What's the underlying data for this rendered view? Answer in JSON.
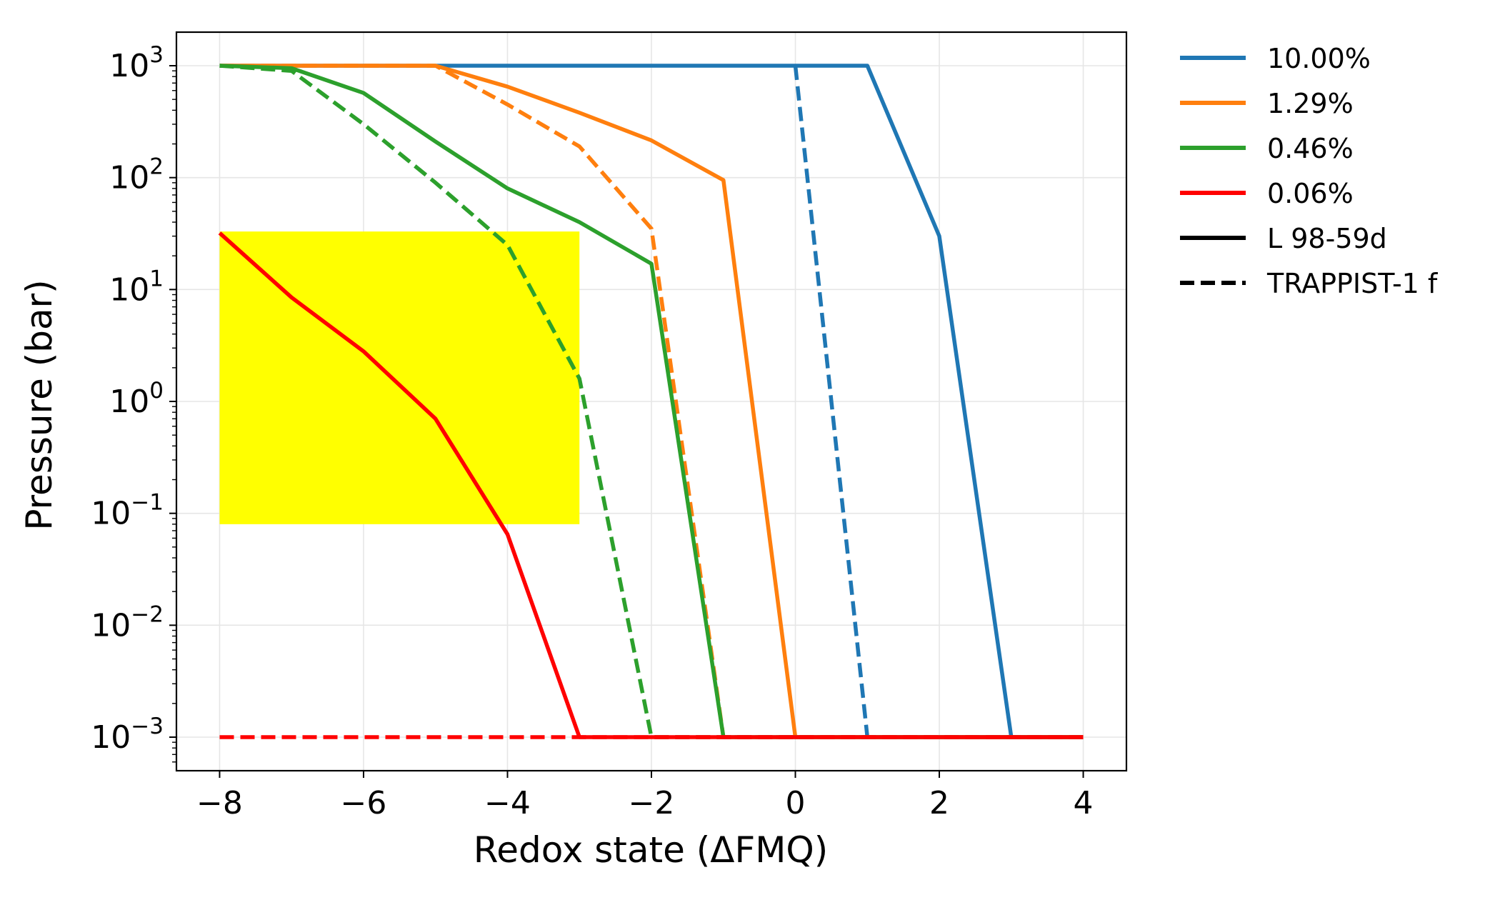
{
  "chart_data": {
    "type": "line",
    "title": "",
    "xlabel": "Redox state (ΔFMQ)",
    "ylabel": "Pressure (bar)",
    "xlim": [
      -8.6,
      4.6
    ],
    "ylim_log10": [
      -3.3,
      3.3
    ],
    "yscale": "log",
    "grid": true,
    "legend_position": "outside-right",
    "x_ticks": [
      -8,
      -6,
      -4,
      -2,
      0,
      2,
      4
    ],
    "x_tick_labels": [
      "−8",
      "−6",
      "−4",
      "−2",
      "0",
      "2",
      "4"
    ],
    "y_ticks_exp": [
      3,
      2,
      1,
      0,
      -1,
      -2,
      -3
    ],
    "y_tick_labels": [
      {
        "base": "10",
        "exp": "3"
      },
      {
        "base": "10",
        "exp": "2"
      },
      {
        "base": "10",
        "exp": "1"
      },
      {
        "base": "10",
        "exp": "0"
      },
      {
        "base": "10",
        "exp": "−1"
      },
      {
        "base": "10",
        "exp": "−2"
      },
      {
        "base": "10",
        "exp": "−3"
      }
    ],
    "shaded_region": {
      "x": [
        -8,
        -3
      ],
      "y": [
        0.08,
        33
      ],
      "color": "#ffff00"
    },
    "series": [
      {
        "name": "10.00%",
        "planet": "L 98-59d",
        "color": "#1f77b4",
        "dash": false,
        "x": [
          -8,
          -7,
          -6,
          -5,
          -4,
          -3,
          -2,
          -1,
          0,
          1,
          2,
          3,
          4
        ],
        "y": [
          1000,
          1000,
          1000,
          1000,
          1000,
          1000,
          1000,
          1000,
          1000,
          1000,
          30,
          0.001,
          0.001
        ]
      },
      {
        "name": "10.00%",
        "planet": "TRAPPIST-1 f",
        "color": "#1f77b4",
        "dash": true,
        "x": [
          0,
          1,
          2,
          3,
          4
        ],
        "y": [
          1000,
          0.001,
          0.001,
          0.001,
          0.001
        ]
      },
      {
        "name": "1.29%",
        "planet": "L 98-59d",
        "color": "#ff7f0e",
        "dash": false,
        "x": [
          -8,
          -7,
          -6,
          -5,
          -4,
          -3,
          -2,
          -1,
          0,
          1,
          2,
          3,
          4
        ],
        "y": [
          1000,
          1000,
          1000,
          1000,
          650,
          380,
          215,
          95,
          0.001,
          0.001,
          0.001,
          0.001,
          0.001
        ]
      },
      {
        "name": "1.29%",
        "planet": "TRAPPIST-1 f",
        "color": "#ff7f0e",
        "dash": true,
        "x": [
          -8,
          -7,
          -6,
          -5,
          -4,
          -3,
          -2,
          -1,
          0,
          1,
          2,
          3,
          4
        ],
        "y": [
          1000,
          1000,
          1000,
          1000,
          450,
          190,
          35,
          0.001,
          0.001,
          0.001,
          0.001,
          0.001,
          0.001
        ]
      },
      {
        "name": "0.46%",
        "planet": "L 98-59d",
        "color": "#2ca02c",
        "dash": false,
        "x": [
          -8,
          -7,
          -6,
          -5,
          -4,
          -3,
          -2,
          -1,
          0,
          1,
          2,
          3,
          4
        ],
        "y": [
          1000,
          950,
          570,
          210,
          80,
          40,
          17,
          0.001,
          0.001,
          0.001,
          0.001,
          0.001,
          0.001
        ]
      },
      {
        "name": "0.46%",
        "planet": "TRAPPIST-1 f",
        "color": "#2ca02c",
        "dash": true,
        "x": [
          -8,
          -7,
          -6,
          -5,
          -4,
          -3,
          -2,
          -1,
          0,
          1,
          2,
          3,
          4
        ],
        "y": [
          1000,
          900,
          300,
          90,
          25,
          1.6,
          0.001,
          0.001,
          0.001,
          0.001,
          0.001,
          0.001,
          0.001
        ]
      },
      {
        "name": "0.06%",
        "planet": "L 98-59d",
        "color": "#ff0000",
        "dash": false,
        "x": [
          -8,
          -7,
          -6,
          -5,
          -4,
          -3,
          -2,
          -1,
          0,
          1,
          2,
          3,
          4
        ],
        "y": [
          32,
          8.5,
          2.8,
          0.7,
          0.065,
          0.001,
          0.001,
          0.001,
          0.001,
          0.001,
          0.001,
          0.001,
          0.001
        ]
      },
      {
        "name": "0.06%",
        "planet": "TRAPPIST-1 f",
        "color": "#ff0000",
        "dash": true,
        "x": [
          -8,
          -7,
          -6,
          -5,
          -4,
          -3,
          -2,
          -1,
          0,
          1,
          2,
          3,
          4
        ],
        "y": [
          0.001,
          0.001,
          0.001,
          0.001,
          0.001,
          0.001,
          0.001,
          0.001,
          0.001,
          0.001,
          0.001,
          0.001,
          0.001
        ]
      }
    ],
    "legend": {
      "colors": [
        {
          "label": "10.00%",
          "color": "#1f77b4"
        },
        {
          "label": "1.29%",
          "color": "#ff7f0e"
        },
        {
          "label": "0.46%",
          "color": "#2ca02c"
        },
        {
          "label": "0.06%",
          "color": "#ff0000"
        }
      ],
      "styles": [
        {
          "label": "L 98-59d",
          "dash": false,
          "color": "#000000"
        },
        {
          "label": "TRAPPIST-1 f",
          "dash": true,
          "color": "#000000"
        }
      ]
    }
  }
}
